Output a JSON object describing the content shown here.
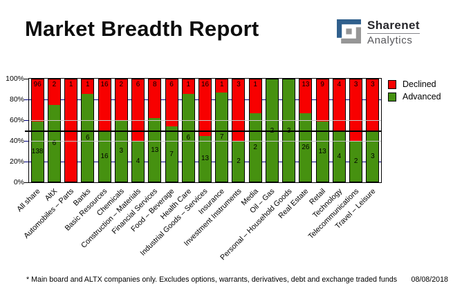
{
  "header": {
    "title": "Market Breadth Report",
    "logo": {
      "name": "Sharenet",
      "sub": "Analytics",
      "blue": "#2f5f8c",
      "gray": "#969696"
    }
  },
  "chart_data": {
    "type": "bar",
    "variant": "stacked-percent",
    "categories": [
      "All share",
      "AltX",
      "Automobiles – Parts",
      "Banks",
      "Basic Resources",
      "Chemicals",
      "Construction – Materials",
      "Financial Services",
      "Food – Beverage",
      "Health Care",
      "Industrial Goods – Services",
      "Insurance",
      "Investment Instruments",
      "Media",
      "Oil – Gas",
      "Personal – Household Goods",
      "Real Estate",
      "Retail",
      "Technology",
      "Telecommunications",
      "Travel – Leisure"
    ],
    "series": [
      {
        "name": "Declined",
        "color": "#f80000",
        "values": [
          96,
          2,
          1,
          1,
          16,
          2,
          6,
          8,
          6,
          1,
          16,
          1,
          3,
          1,
          0,
          0,
          13,
          9,
          4,
          3,
          3
        ]
      },
      {
        "name": "Advanced",
        "color": "#469110",
        "values": [
          138,
          6,
          0,
          6,
          16,
          3,
          4,
          13,
          7,
          6,
          13,
          7,
          2,
          2,
          2,
          3,
          26,
          13,
          4,
          2,
          3
        ]
      }
    ],
    "y_ticks": [
      0,
      20,
      40,
      60,
      80,
      100
    ],
    "y_tick_suffix": "%",
    "ylim": [
      0,
      100
    ],
    "reference_line_pct": 50,
    "gridlines": {
      "navy_levels": [
        20,
        80
      ],
      "silver_levels": [
        40,
        60
      ],
      "navy_color": "#000080",
      "silver_color": "#c9c9c9"
    },
    "legend_position": "top-right"
  },
  "footer": {
    "note": "* Main board and ALTX companies only. Excludes options, warrants, derivatives, debt and exchange traded funds",
    "date": "08/08/2018"
  }
}
